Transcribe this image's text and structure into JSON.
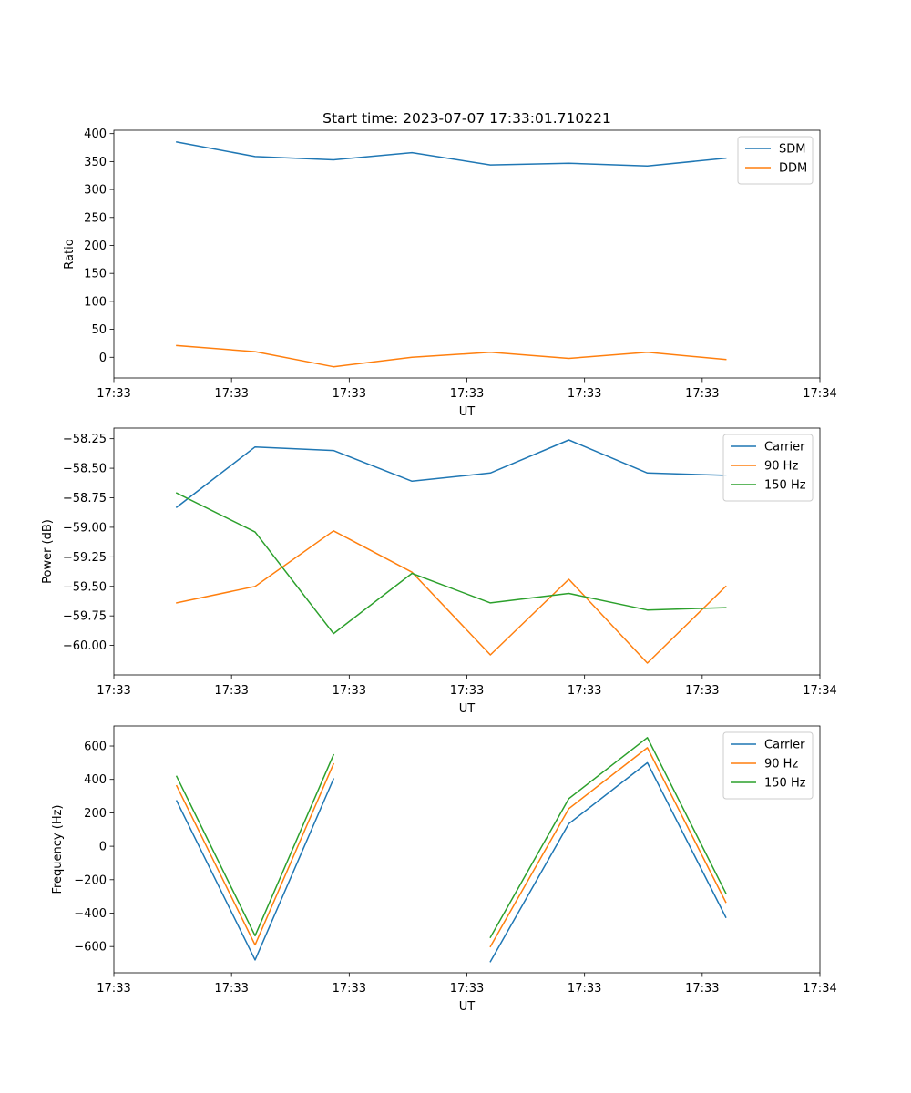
{
  "figure_title": "Start time: 2023-07-07 17:33:01.710221",
  "chart_data": [
    {
      "type": "line",
      "title": "Start time: 2023-07-07 17:33:01.710221",
      "xlabel": "UT",
      "ylabel": "Ratio",
      "x": [
        1,
        2,
        3,
        4,
        5,
        6,
        7,
        8
      ],
      "xlim": [
        0.2,
        9.2
      ],
      "xticks": [
        0.2,
        1.7,
        3.2,
        4.7,
        6.2,
        7.7,
        9.2
      ],
      "xtick_labels": [
        "17:33",
        "17:33",
        "17:33",
        "17:33",
        "17:33",
        "17:33",
        "17:34"
      ],
      "ylim": [
        -37,
        406
      ],
      "yticks": [
        0,
        50,
        100,
        150,
        200,
        250,
        300,
        350,
        400
      ],
      "ytick_labels": [
        "0",
        "50",
        "100",
        "150",
        "200",
        "250",
        "300",
        "350",
        "400"
      ],
      "legend_position": "top-right",
      "series": [
        {
          "name": "SDM",
          "color": "#1f77b4",
          "values": [
            385,
            359,
            353,
            366,
            344,
            347,
            342,
            356
          ]
        },
        {
          "name": "DDM",
          "color": "#ff7f0e",
          "values": [
            21,
            10,
            -17,
            0,
            9,
            -2,
            9,
            -4
          ]
        }
      ]
    },
    {
      "type": "line",
      "title": "",
      "xlabel": "UT",
      "ylabel": "Power (dB)",
      "x": [
        1,
        2,
        3,
        4,
        5,
        6,
        7,
        8
      ],
      "xlim": [
        0.2,
        9.2
      ],
      "xticks": [
        0.2,
        1.7,
        3.2,
        4.7,
        6.2,
        7.7,
        9.2
      ],
      "xtick_labels": [
        "17:33",
        "17:33",
        "17:33",
        "17:33",
        "17:33",
        "17:33",
        "17:34"
      ],
      "ylim": [
        -60.25,
        -58.16
      ],
      "yticks": [
        -60.0,
        -59.75,
        -59.5,
        -59.25,
        -59.0,
        -58.75,
        -58.5,
        -58.25
      ],
      "ytick_labels": [
        "−60.00",
        "−59.75",
        "−59.50",
        "−59.25",
        "−59.00",
        "−58.75",
        "−58.50",
        "−58.25"
      ],
      "legend_position": "top-right",
      "series": [
        {
          "name": "Carrier",
          "color": "#1f77b4",
          "values": [
            -58.83,
            -58.32,
            -58.35,
            -58.61,
            -58.54,
            -58.26,
            -58.54,
            -58.56
          ]
        },
        {
          "name": "90 Hz",
          "color": "#ff7f0e",
          "values": [
            -59.64,
            -59.5,
            -59.03,
            -59.38,
            -60.08,
            -59.44,
            -60.15,
            -59.5
          ]
        },
        {
          "name": "150 Hz",
          "color": "#2ca02c",
          "values": [
            -58.71,
            -59.04,
            -59.9,
            -59.39,
            -59.64,
            -59.56,
            -59.7,
            -59.68
          ]
        }
      ]
    },
    {
      "type": "line",
      "title": "",
      "xlabel": "UT",
      "ylabel": "Frequency (Hz)",
      "x": [
        1,
        2,
        3,
        4,
        5,
        6,
        7,
        8
      ],
      "xlim": [
        0.2,
        9.2
      ],
      "xticks": [
        0.2,
        1.7,
        3.2,
        4.7,
        6.2,
        7.7,
        9.2
      ],
      "xtick_labels": [
        "17:33",
        "17:33",
        "17:33",
        "17:33",
        "17:33",
        "17:33",
        "17:34"
      ],
      "ylim": [
        -757,
        720
      ],
      "yticks": [
        -600,
        -400,
        -200,
        0,
        200,
        400,
        600
      ],
      "ytick_labels": [
        "−600",
        "−400",
        "−200",
        "0",
        "200",
        "400",
        "600"
      ],
      "legend_position": "top-right",
      "series": [
        {
          "name": "Carrier",
          "color": "#1f77b4",
          "values": [
            272,
            -680,
            403,
            null,
            -690,
            135,
            500,
            -425
          ]
        },
        {
          "name": "90 Hz",
          "color": "#ff7f0e",
          "values": [
            362,
            -590,
            493,
            null,
            -600,
            225,
            590,
            -335
          ]
        },
        {
          "name": "150 Hz",
          "color": "#2ca02c",
          "values": [
            418,
            -535,
            548,
            null,
            -545,
            285,
            650,
            -280
          ]
        }
      ]
    }
  ]
}
